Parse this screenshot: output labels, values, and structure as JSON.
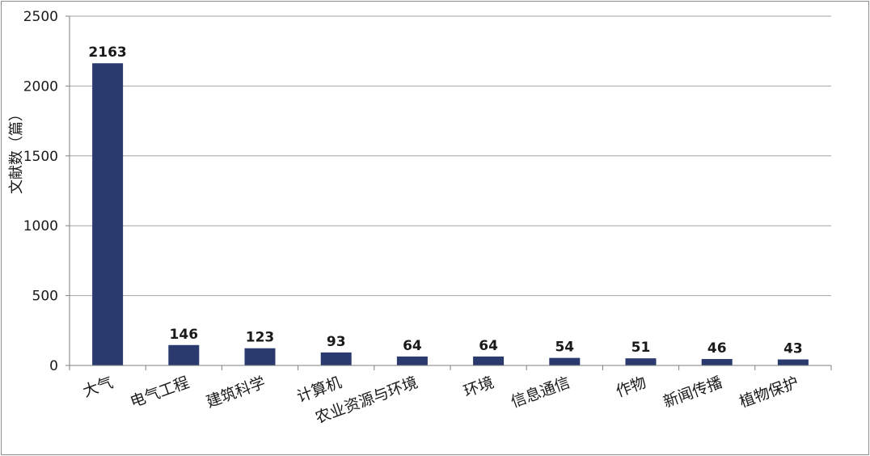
{
  "chart_data": {
    "type": "bar",
    "title": "",
    "xlabel": "",
    "ylabel": "文献数（篇）",
    "categories": [
      "大气",
      "电气工程",
      "建筑科学",
      "计算机",
      "农业资源与环境",
      "环境",
      "信息通信",
      "作物",
      "新闻传播",
      "植物保护"
    ],
    "values": [
      2163,
      146,
      123,
      93,
      64,
      64,
      54,
      51,
      46,
      43
    ],
    "ylim": [
      0,
      2500
    ],
    "yticks": [
      0,
      500,
      1000,
      1500,
      2000,
      2500
    ],
    "grid": true,
    "legend": "none",
    "bar_color": "#2b3a6e",
    "grid_color": "#a6a6a6"
  }
}
